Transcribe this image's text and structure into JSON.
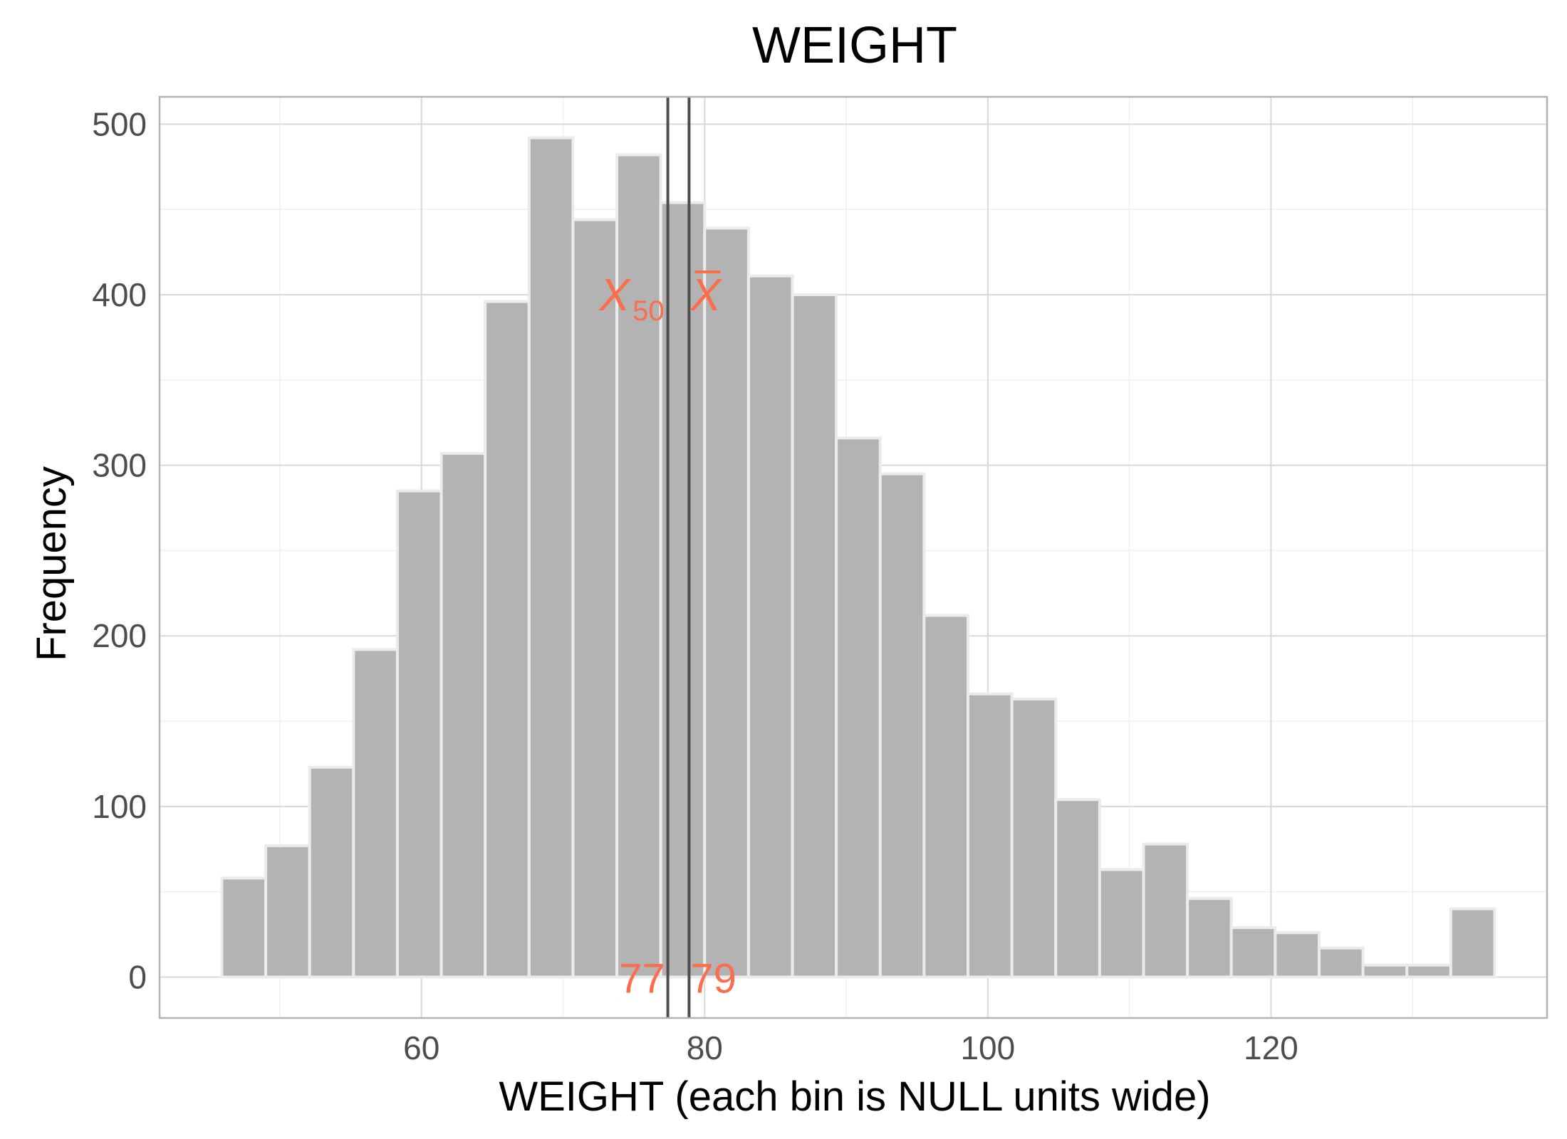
{
  "chart_data": {
    "type": "bar",
    "title": "WEIGHT",
    "xlabel": "WEIGHT (each bin is NULL units wide)",
    "ylabel": "Frequency",
    "xlim": [
      41.5,
      139.5
    ],
    "ylim": [
      -24,
      516
    ],
    "x_ticks": [
      60,
      80,
      100,
      120
    ],
    "y_ticks": [
      0,
      100,
      200,
      300,
      400,
      500
    ],
    "grid": true,
    "bin_width": 3.11,
    "bins": [
      {
        "x0": 45.9,
        "x1": 49.0,
        "value": 58
      },
      {
        "x0": 49.0,
        "x1": 52.1,
        "value": 77
      },
      {
        "x0": 52.1,
        "x1": 55.2,
        "value": 123
      },
      {
        "x0": 55.2,
        "x1": 58.3,
        "value": 192
      },
      {
        "x0": 58.3,
        "x1": 61.4,
        "value": 285
      },
      {
        "x0": 61.4,
        "x1": 64.5,
        "value": 307
      },
      {
        "x0": 64.5,
        "x1": 67.6,
        "value": 396
      },
      {
        "x0": 67.6,
        "x1": 70.7,
        "value": 492
      },
      {
        "x0": 70.7,
        "x1": 73.8,
        "value": 444
      },
      {
        "x0": 73.8,
        "x1": 76.9,
        "value": 482
      },
      {
        "x0": 76.9,
        "x1": 80.0,
        "value": 454
      },
      {
        "x0": 80.0,
        "x1": 83.1,
        "value": 439
      },
      {
        "x0": 83.1,
        "x1": 86.2,
        "value": 411
      },
      {
        "x0": 86.2,
        "x1": 89.3,
        "value": 400
      },
      {
        "x0": 89.3,
        "x1": 92.4,
        "value": 316
      },
      {
        "x0": 92.4,
        "x1": 95.5,
        "value": 295
      },
      {
        "x0": 95.5,
        "x1": 98.6,
        "value": 212
      },
      {
        "x0": 98.6,
        "x1": 101.7,
        "value": 166
      },
      {
        "x0": 101.7,
        "x1": 104.8,
        "value": 163
      },
      {
        "x0": 104.8,
        "x1": 107.9,
        "value": 104
      },
      {
        "x0": 107.9,
        "x1": 111.0,
        "value": 63
      },
      {
        "x0": 111.0,
        "x1": 114.1,
        "value": 78
      },
      {
        "x0": 114.1,
        "x1": 117.2,
        "value": 46
      },
      {
        "x0": 117.2,
        "x1": 120.3,
        "value": 29
      },
      {
        "x0": 120.3,
        "x1": 123.4,
        "value": 26
      },
      {
        "x0": 123.4,
        "x1": 126.5,
        "value": 17
      },
      {
        "x0": 126.5,
        "x1": 129.6,
        "value": 7
      },
      {
        "x0": 129.6,
        "x1": 132.7,
        "value": 7
      },
      {
        "x0": 132.7,
        "x1": 135.8,
        "value": 40
      }
    ],
    "reference_lines": [
      {
        "label": "X50",
        "x": 77.4,
        "value_label": "77"
      },
      {
        "label": "X̄",
        "x": 78.9,
        "value_label": "79"
      }
    ],
    "colors": {
      "bar_fill": "#b3b3b3",
      "bar_stroke": "#ebebeb",
      "annotation": "#fa6e4e",
      "ref_line": "#4d4d4d",
      "grid_major": "#d9d9d9",
      "grid_minor": "#f0f0f0",
      "panel_border": "#b3b3b3"
    }
  }
}
